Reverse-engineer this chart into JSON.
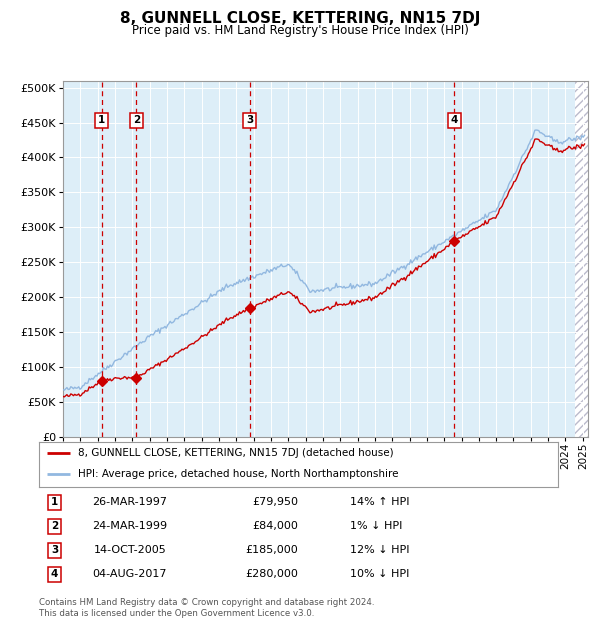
{
  "title": "8, GUNNELL CLOSE, KETTERING, NN15 7DJ",
  "subtitle": "Price paid vs. HM Land Registry's House Price Index (HPI)",
  "legend_line1": "8, GUNNELL CLOSE, KETTERING, NN15 7DJ (detached house)",
  "legend_line2": "HPI: Average price, detached house, North Northamptonshire",
  "footer1": "Contains HM Land Registry data © Crown copyright and database right 2024.",
  "footer2": "This data is licensed under the Open Government Licence v3.0.",
  "sales": [
    {
      "num": 1,
      "date": "26-MAR-1997",
      "price": 79950,
      "pct": "14%",
      "dir": "↑"
    },
    {
      "num": 2,
      "date": "24-MAR-1999",
      "price": 84000,
      "pct": "1%",
      "dir": "↓"
    },
    {
      "num": 3,
      "date": "14-OCT-2005",
      "price": 185000,
      "pct": "12%",
      "dir": "↓"
    },
    {
      "num": 4,
      "date": "04-AUG-2017",
      "price": 280000,
      "pct": "10%",
      "dir": "↓"
    }
  ],
  "sale_years": [
    1997.23,
    1999.23,
    2005.79,
    2017.59
  ],
  "sale_prices": [
    79950,
    84000,
    185000,
    280000
  ],
  "vline_years": [
    1997.23,
    1999.23,
    2005.79,
    2017.59
  ],
  "ylim": [
    0,
    510000
  ],
  "yticks": [
    0,
    50000,
    100000,
    150000,
    200000,
    250000,
    300000,
    350000,
    400000,
    450000,
    500000
  ],
  "xlim_start": 1995.0,
  "xlim_end": 2025.3,
  "hpi_color": "#92b8e0",
  "price_color": "#cc0000",
  "bg_shaded_color": "#ddeef8",
  "vline_color": "#cc0000",
  "box_color": "#cc0000",
  "title_fontsize": 11,
  "subtitle_fontsize": 9
}
